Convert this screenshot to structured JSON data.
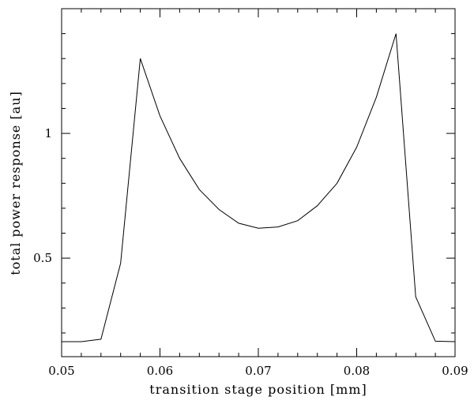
{
  "chart_data": {
    "type": "line",
    "title": "",
    "xlabel": "transition stage position [mm]",
    "ylabel": "total power response [au]",
    "xlim": [
      0.05,
      0.09
    ],
    "ylim": [
      0.105,
      1.5
    ],
    "grid": false,
    "x_ticks": [
      {
        "value": 0.05,
        "label": "0.05"
      },
      {
        "value": 0.06,
        "label": "0.06"
      },
      {
        "value": 0.07,
        "label": "0.07"
      },
      {
        "value": 0.08,
        "label": "0.08"
      },
      {
        "value": 0.09,
        "label": "0.09"
      }
    ],
    "y_ticks": [
      {
        "value": 0.5,
        "label": "0.5"
      },
      {
        "value": 1.0,
        "label": "1"
      }
    ],
    "x_minor_step": 0.002,
    "y_minor_step": 0.1,
    "series": [
      {
        "color": "#000000",
        "x": [
          0.05,
          0.052,
          0.054,
          0.056,
          0.058,
          0.06,
          0.062,
          0.064,
          0.066,
          0.068,
          0.07,
          0.072,
          0.074,
          0.076,
          0.078,
          0.08,
          0.082,
          0.084,
          0.086,
          0.088,
          0.09
        ],
        "y": [
          0.165,
          0.165,
          0.175,
          0.48,
          1.3,
          1.07,
          0.9,
          0.775,
          0.695,
          0.64,
          0.62,
          0.625,
          0.65,
          0.71,
          0.8,
          0.945,
          1.145,
          1.4,
          0.345,
          0.167,
          0.165
        ]
      }
    ]
  }
}
